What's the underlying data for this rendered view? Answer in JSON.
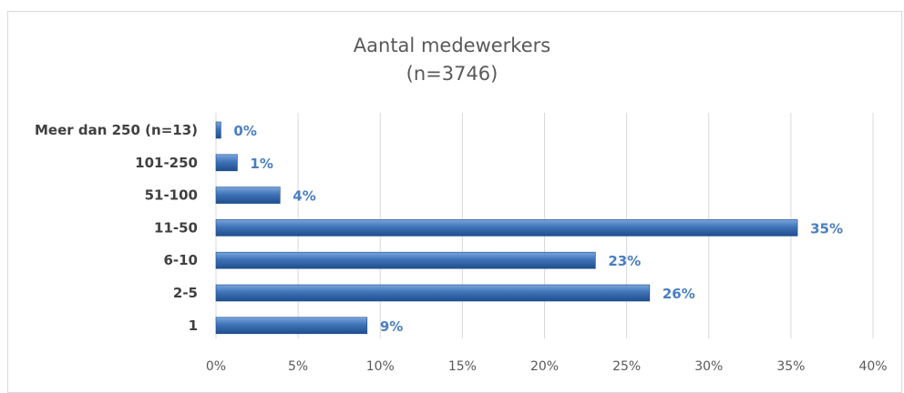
{
  "chart_data": {
    "type": "bar",
    "orientation": "horizontal",
    "title_line1": "Aantal medewerkers",
    "title_line2": "(n=3746)",
    "categories": [
      "Meer dan 250 (n=13)",
      "101-250",
      "51-100",
      "11-50",
      "6-10",
      "2-5",
      "1"
    ],
    "values": [
      0.3,
      1.3,
      3.9,
      35.4,
      23.1,
      26.4,
      9.2
    ],
    "data_labels": [
      "0%",
      "1%",
      "4%",
      "35%",
      "23%",
      "26%",
      "9%"
    ],
    "x_ticks": [
      "0%",
      "5%",
      "10%",
      "15%",
      "20%",
      "25%",
      "30%",
      "35%",
      "40%"
    ],
    "xlim": [
      0,
      40
    ],
    "grid": true,
    "legend": "none",
    "colors": {
      "bar": "#3f73b8",
      "bar_light": "#7aa6dc",
      "bar_dark": "#1f4e8c",
      "data_label": "#4a7ec0",
      "grid": "#d9d9d9"
    }
  }
}
